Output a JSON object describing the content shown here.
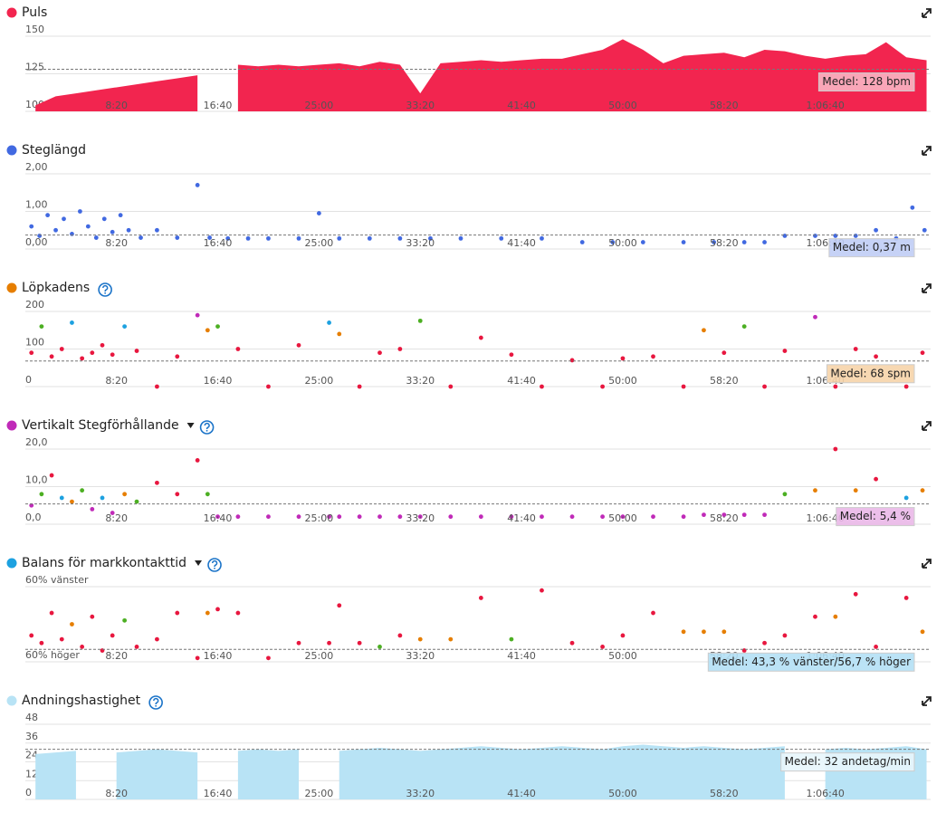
{
  "chart_data": [
    {
      "type": "area",
      "title": "Puls",
      "color": "#f2254f",
      "xlim": [
        50,
        4520
      ],
      "ylim": [
        100,
        150
      ],
      "yticks": [
        150,
        125,
        100
      ],
      "xticks": [
        {
          "value": 500,
          "label": "8:20"
        },
        {
          "value": 1000,
          "label": "16:40"
        },
        {
          "value": 1500,
          "label": "25:00"
        },
        {
          "value": 2000,
          "label": "33:20"
        },
        {
          "value": 2500,
          "label": "41:40"
        },
        {
          "value": 3000,
          "label": "50:00"
        },
        {
          "value": 3500,
          "label": "58:20"
        },
        {
          "value": 4000,
          "label": "1:06:40"
        }
      ],
      "x": [
        100,
        200,
        300,
        400,
        500,
        600,
        700,
        800,
        900,
        1000,
        1100,
        1200,
        1300,
        1400,
        1500,
        1600,
        1700,
        1800,
        1900,
        2000,
        2100,
        2200,
        2300,
        2400,
        2500,
        2600,
        2700,
        2800,
        2900,
        3000,
        3100,
        3200,
        3300,
        3400,
        3500,
        3600,
        3700,
        3800,
        3900,
        4000,
        4100,
        4200,
        4300,
        4400,
        4500
      ],
      "values": [
        104,
        110,
        112,
        114,
        116,
        118,
        120,
        122,
        124,
        null,
        131,
        130,
        131,
        130,
        131,
        132,
        130,
        133,
        131,
        112,
        132,
        133,
        134,
        133,
        134,
        135,
        135,
        138,
        141,
        148,
        141,
        132,
        137,
        138,
        139,
        136,
        141,
        140,
        137,
        135,
        137,
        138,
        146,
        136,
        134
      ],
      "mean": {
        "value": 128,
        "label": "Medel: 128 bpm"
      }
    },
    {
      "type": "scatter",
      "title": "Steglängd",
      "color": "#4169e1",
      "xlim": [
        50,
        4520
      ],
      "ylim": [
        0,
        2
      ],
      "yticks": [
        {
          "value": 2,
          "label": "2,00"
        },
        {
          "value": 1,
          "label": "1,00"
        },
        {
          "value": 0,
          "label": "0,00"
        }
      ],
      "xticks": [
        {
          "value": 500,
          "label": "8:20"
        },
        {
          "value": 1000,
          "label": "16:40"
        },
        {
          "value": 1500,
          "label": "25:00"
        },
        {
          "value": 2000,
          "label": "33:20"
        },
        {
          "value": 2500,
          "label": "41:40"
        },
        {
          "value": 3000,
          "label": "50:00"
        },
        {
          "value": 3500,
          "label": "58:20"
        },
        {
          "value": 4000,
          "label": "1:06:40"
        }
      ],
      "x": [
        80,
        120,
        160,
        200,
        240,
        280,
        320,
        360,
        400,
        440,
        480,
        520,
        560,
        620,
        700,
        800,
        900,
        960,
        1050,
        1150,
        1250,
        1400,
        1500,
        1600,
        1750,
        1900,
        2050,
        2200,
        2400,
        2600,
        2800,
        2950,
        3100,
        3300,
        3450,
        3600,
        3700,
        3800,
        3950,
        4050,
        4150,
        4250,
        4350,
        4430,
        4490
      ],
      "values": [
        0.6,
        0.35,
        0.9,
        0.5,
        0.8,
        0.4,
        1.0,
        0.6,
        0.3,
        0.8,
        0.45,
        0.9,
        0.5,
        0.3,
        0.5,
        0.3,
        1.7,
        0.3,
        0.28,
        0.28,
        0.28,
        0.28,
        0.95,
        0.28,
        0.28,
        0.28,
        0.28,
        0.28,
        0.28,
        0.28,
        0.18,
        0.18,
        0.18,
        0.18,
        0.18,
        0.18,
        0.18,
        0.35,
        0.35,
        0.35,
        0.35,
        0.5,
        0.28,
        1.1,
        0.5
      ],
      "mean": {
        "value": 0.37,
        "label": "Medel: 0,37 m"
      }
    },
    {
      "type": "scatter",
      "title": "Löpkadens",
      "color": "#e67e00",
      "info_icon": true,
      "xlim": [
        50,
        4520
      ],
      "ylim": [
        0,
        200
      ],
      "yticks": [
        200,
        100,
        0
      ],
      "xticks": [
        {
          "value": 500,
          "label": "8:20"
        },
        {
          "value": 1000,
          "label": "16:40"
        },
        {
          "value": 1500,
          "label": "25:00"
        },
        {
          "value": 2000,
          "label": "33:20"
        },
        {
          "value": 2500,
          "label": "41:40"
        },
        {
          "value": 3000,
          "label": "50:00"
        },
        {
          "value": 3500,
          "label": "58:20"
        },
        {
          "value": 4000,
          "label": "1:06:40"
        }
      ],
      "x": [
        80,
        130,
        180,
        230,
        280,
        330,
        380,
        430,
        480,
        540,
        600,
        700,
        800,
        900,
        950,
        1000,
        1100,
        1250,
        1400,
        1550,
        1600,
        1700,
        1800,
        1900,
        2000,
        2150,
        2300,
        2450,
        2600,
        2750,
        2900,
        3000,
        3150,
        3300,
        3400,
        3500,
        3600,
        3700,
        3800,
        3950,
        4050,
        4150,
        4250,
        4400,
        4480
      ],
      "values": [
        90,
        160,
        80,
        100,
        170,
        75,
        90,
        110,
        85,
        160,
        95,
        0,
        80,
        190,
        150,
        160,
        100,
        0,
        110,
        170,
        140,
        0,
        90,
        100,
        175,
        0,
        130,
        85,
        0,
        70,
        0,
        75,
        80,
        0,
        150,
        90,
        160,
        0,
        95,
        185,
        0,
        100,
        80,
        0,
        90
      ],
      "colors": [
        "#e8173f",
        "#4caf22",
        "#e8173f",
        "#e8173f",
        "#1da1e0",
        "#e8173f",
        "#e8173f",
        "#e8173f",
        "#e8173f",
        "#1da1e0",
        "#e8173f",
        "#e8173f",
        "#e8173f",
        "#c02ab8",
        "#e67e00",
        "#4caf22",
        "#e8173f",
        "#e8173f",
        "#e8173f",
        "#1da1e0",
        "#e67e00",
        "#e8173f",
        "#e8173f",
        "#e8173f",
        "#4caf22",
        "#e8173f",
        "#e8173f",
        "#e8173f",
        "#e8173f",
        "#e8173f",
        "#e8173f",
        "#e8173f",
        "#e8173f",
        "#e8173f",
        "#e67e00",
        "#e8173f",
        "#4caf22",
        "#e8173f",
        "#e8173f",
        "#c02ab8",
        "#e8173f",
        "#e8173f",
        "#e8173f",
        "#e8173f",
        "#e8173f"
      ],
      "mean": {
        "value": 68,
        "label": "Medel: 68 spm"
      }
    },
    {
      "type": "scatter",
      "title": "Vertikalt Stegförhållande",
      "color": "#c02ab8",
      "dropdown": true,
      "info_icon": true,
      "xlim": [
        50,
        4520
      ],
      "ylim": [
        0,
        20
      ],
      "yticks": [
        {
          "value": 20,
          "label": "20,0"
        },
        {
          "value": 10,
          "label": "10,0"
        },
        {
          "value": 0,
          "label": "0,0"
        }
      ],
      "xticks": [
        {
          "value": 500,
          "label": "8:20"
        },
        {
          "value": 1000,
          "label": "16:40"
        },
        {
          "value": 1500,
          "label": "25:00"
        },
        {
          "value": 2000,
          "label": "33:20"
        },
        {
          "value": 2500,
          "label": "41:40"
        },
        {
          "value": 3000,
          "label": "50:00"
        },
        {
          "value": 3500,
          "label": "58:20"
        },
        {
          "value": 4000,
          "label": "1:06:40"
        }
      ],
      "x": [
        80,
        130,
        180,
        230,
        280,
        330,
        380,
        430,
        480,
        540,
        600,
        700,
        800,
        900,
        950,
        1000,
        1100,
        1250,
        1400,
        1550,
        1600,
        1700,
        1800,
        1900,
        2000,
        2150,
        2300,
        2450,
        2600,
        2750,
        2900,
        3000,
        3150,
        3300,
        3400,
        3500,
        3600,
        3700,
        3800,
        3950,
        4050,
        4150,
        4250,
        4400,
        4480
      ],
      "values": [
        5,
        8,
        13,
        7,
        6,
        9,
        4,
        7,
        3,
        8,
        6,
        11,
        8,
        17,
        8,
        2,
        2,
        2,
        2,
        2,
        2,
        2,
        2,
        2,
        2,
        2,
        2,
        2,
        2,
        2,
        2,
        2,
        2,
        2,
        2.5,
        2.5,
        2.5,
        2.5,
        8,
        9,
        20,
        9,
        12,
        7,
        9
      ],
      "colors": [
        "#c02ab8",
        "#4caf22",
        "#e8173f",
        "#1da1e0",
        "#e67e00",
        "#4caf22",
        "#c02ab8",
        "#1da1e0",
        "#c02ab8",
        "#e67e00",
        "#4caf22",
        "#e8173f",
        "#e8173f",
        "#e8173f",
        "#4caf22",
        "#c02ab8",
        "#c02ab8",
        "#c02ab8",
        "#c02ab8",
        "#c02ab8",
        "#c02ab8",
        "#c02ab8",
        "#c02ab8",
        "#c02ab8",
        "#c02ab8",
        "#c02ab8",
        "#c02ab8",
        "#c02ab8",
        "#c02ab8",
        "#c02ab8",
        "#c02ab8",
        "#c02ab8",
        "#c02ab8",
        "#c02ab8",
        "#c02ab8",
        "#c02ab8",
        "#c02ab8",
        "#c02ab8",
        "#4caf22",
        "#e67e00",
        "#e8173f",
        "#e67e00",
        "#e8173f",
        "#1da1e0",
        "#e67e00"
      ],
      "mean": {
        "value": 5.4,
        "label": "Medel: 5,4 %"
      }
    },
    {
      "type": "scatter",
      "title": "Balans för markkontakttid",
      "color": "#1da1e0",
      "dropdown": true,
      "info_icon": true,
      "xlim": [
        50,
        4520
      ],
      "ylim": [
        40,
        60
      ],
      "yticks": [
        {
          "value": 60,
          "label": "60% vänster"
        },
        {
          "value": 40,
          "label": "60% höger"
        }
      ],
      "xticks": [
        {
          "value": 500,
          "label": "8:20"
        },
        {
          "value": 1000,
          "label": "16:40"
        },
        {
          "value": 1500,
          "label": "25:00"
        },
        {
          "value": 2000,
          "label": "33:20"
        },
        {
          "value": 2500,
          "label": "41:40"
        },
        {
          "value": 3000,
          "label": "50:00"
        },
        {
          "value": 3500,
          "label": "58:20"
        },
        {
          "value": 4000,
          "label": "1:06:40"
        }
      ],
      "x": [
        80,
        130,
        180,
        230,
        280,
        330,
        380,
        430,
        480,
        540,
        600,
        700,
        800,
        900,
        950,
        1000,
        1100,
        1250,
        1400,
        1550,
        1600,
        1700,
        1800,
        1900,
        2000,
        2150,
        2300,
        2450,
        2600,
        2750,
        2900,
        3000,
        3150,
        3300,
        3400,
        3500,
        3600,
        3700,
        3800,
        3950,
        4050,
        4150,
        4250,
        4400,
        4480
      ],
      "values": [
        47,
        45,
        53,
        46,
        50,
        44,
        52,
        43,
        47,
        51,
        44,
        46,
        53,
        41,
        53,
        54,
        53,
        41,
        45,
        45,
        55,
        45,
        44,
        47,
        46,
        46,
        57,
        46,
        59,
        45,
        44,
        47,
        53,
        48,
        48,
        48,
        43,
        45,
        47,
        52,
        52,
        58,
        44,
        57,
        48
      ],
      "colors": [
        "#e8173f",
        "#e8173f",
        "#e8173f",
        "#e8173f",
        "#e67e00",
        "#e8173f",
        "#e8173f",
        "#e8173f",
        "#e8173f",
        "#4caf22",
        "#e8173f",
        "#e8173f",
        "#e8173f",
        "#e8173f",
        "#e67e00",
        "#e8173f",
        "#e8173f",
        "#e8173f",
        "#e8173f",
        "#e8173f",
        "#e8173f",
        "#e8173f",
        "#4caf22",
        "#e8173f",
        "#e67e00",
        "#e67e00",
        "#e8173f",
        "#4caf22",
        "#e8173f",
        "#e8173f",
        "#e8173f",
        "#e8173f",
        "#e8173f",
        "#e67e00",
        "#e67e00",
        "#e67e00",
        "#e8173f",
        "#e8173f",
        "#e8173f",
        "#e8173f",
        "#e67e00",
        "#e8173f",
        "#e8173f",
        "#e8173f",
        "#e67e00"
      ],
      "mean": {
        "value": 43.3,
        "label": "Medel: 43,3 % vänster/56,7 % höger"
      }
    },
    {
      "type": "area",
      "title": "Andningshastighet",
      "color": "#b8e3f5",
      "info_icon": true,
      "xlim": [
        50,
        4520
      ],
      "ylim": [
        0,
        48
      ],
      "yticks": [
        48,
        36,
        24,
        12,
        0
      ],
      "xticks": [
        {
          "value": 500,
          "label": "8:20"
        },
        {
          "value": 1000,
          "label": "16:40"
        },
        {
          "value": 1500,
          "label": "25:00"
        },
        {
          "value": 2000,
          "label": "33:20"
        },
        {
          "value": 2500,
          "label": "41:40"
        },
        {
          "value": 3000,
          "label": "50:00"
        },
        {
          "value": 3500,
          "label": "58:20"
        },
        {
          "value": 4000,
          "label": "1:06:40"
        }
      ],
      "x": [
        100,
        200,
        300,
        400,
        500,
        600,
        700,
        800,
        900,
        1000,
        1100,
        1200,
        1300,
        1400,
        1500,
        1600,
        1700,
        1800,
        1900,
        2000,
        2100,
        2200,
        2300,
        2400,
        2500,
        2600,
        2700,
        2800,
        2900,
        3000,
        3100,
        3200,
        3300,
        3400,
        3500,
        3600,
        3700,
        3800,
        3900,
        4000,
        4100,
        4200,
        4300,
        4400,
        4500
      ],
      "values": [
        29,
        30,
        31,
        null,
        30,
        31,
        32,
        31,
        30,
        null,
        31,
        32,
        31,
        32,
        null,
        31,
        32,
        33,
        32,
        31,
        32,
        33,
        34,
        33,
        32,
        33,
        34,
        33,
        32,
        34,
        35,
        34,
        33,
        34,
        33,
        32,
        33,
        34,
        null,
        32,
        33,
        32,
        33,
        34,
        32
      ],
      "mean": {
        "value": 32,
        "label": "Medel: 32 andetag/min"
      }
    }
  ]
}
